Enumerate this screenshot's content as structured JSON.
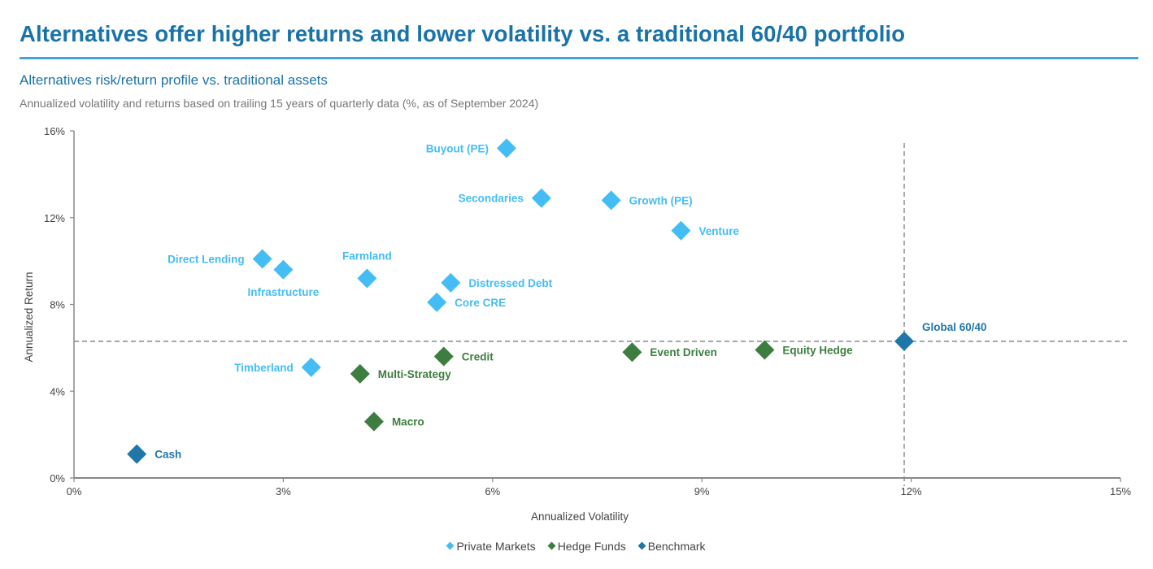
{
  "header": {
    "title": "Alternatives offer higher returns and lower volatility vs. a traditional 60/40 portfolio",
    "subtitle": "Alternatives risk/return profile vs. traditional assets",
    "note": "Annualized volatility and returns based on trailing 15 years of quarterly data (%, as of September 2024)"
  },
  "colors": {
    "title": "#1a73a8",
    "rule": "#3fa4e0",
    "private_markets": "#44bdf5",
    "hedge_funds": "#3d7d3f",
    "benchmark": "#1f77a9",
    "reference_line": "#888888",
    "axis": "#888888"
  },
  "chart_data": {
    "type": "scatter",
    "title": "Alternatives risk/return profile vs. traditional assets",
    "xlabel": "Annualized Volatility",
    "ylabel": "Annualized Return",
    "xlim": [
      0,
      15
    ],
    "ylim": [
      0,
      16
    ],
    "x_ticks": [
      0,
      3,
      6,
      9,
      12,
      15
    ],
    "x_tick_labels": [
      "0%",
      "3%",
      "6%",
      "9%",
      "12%",
      "15%"
    ],
    "y_ticks": [
      0,
      4,
      8,
      12,
      16
    ],
    "y_tick_labels": [
      "0%",
      "4%",
      "8%",
      "12%",
      "16%"
    ],
    "grid": false,
    "legend_position": "bottom-center",
    "reference_lines": {
      "benchmark_x": 11.9,
      "benchmark_y": 6.3
    },
    "series": [
      {
        "name": "Private Markets",
        "color": "#44bdf5",
        "points": [
          {
            "label": "Buyout (PE)",
            "x": 6.2,
            "y": 15.2,
            "label_side": "left"
          },
          {
            "label": "Secondaries",
            "x": 6.7,
            "y": 12.9,
            "label_side": "left"
          },
          {
            "label": "Growth (PE)",
            "x": 7.7,
            "y": 12.8,
            "label_side": "right"
          },
          {
            "label": "Venture",
            "x": 8.7,
            "y": 11.4,
            "label_side": "right"
          },
          {
            "label": "Direct Lending",
            "x": 2.7,
            "y": 10.1,
            "label_side": "left"
          },
          {
            "label": "Infrastructure",
            "x": 3.0,
            "y": 9.6,
            "label_side": "below"
          },
          {
            "label": "Farmland",
            "x": 4.2,
            "y": 9.2,
            "label_side": "above"
          },
          {
            "label": "Distressed Debt",
            "x": 5.4,
            "y": 9.0,
            "label_side": "right"
          },
          {
            "label": "Core CRE",
            "x": 5.2,
            "y": 8.1,
            "label_side": "right"
          },
          {
            "label": "Timberland",
            "x": 3.4,
            "y": 5.1,
            "label_side": "left"
          }
        ]
      },
      {
        "name": "Hedge Funds",
        "color": "#3d7d3f",
        "points": [
          {
            "label": "Credit",
            "x": 5.3,
            "y": 5.6,
            "label_side": "right"
          },
          {
            "label": "Multi-Strategy",
            "x": 4.1,
            "y": 4.8,
            "label_side": "right"
          },
          {
            "label": "Macro",
            "x": 4.3,
            "y": 2.6,
            "label_side": "right"
          },
          {
            "label": "Event Driven",
            "x": 8.0,
            "y": 5.8,
            "label_side": "right"
          },
          {
            "label": "Equity Hedge",
            "x": 9.9,
            "y": 5.9,
            "label_side": "right"
          }
        ]
      },
      {
        "name": "Benchmark",
        "color": "#1f77a9",
        "points": [
          {
            "label": "Global 60/40",
            "x": 11.9,
            "y": 6.3,
            "label_side": "above-right"
          },
          {
            "label": "Cash",
            "x": 0.9,
            "y": 1.1,
            "label_side": "right"
          }
        ]
      }
    ]
  }
}
